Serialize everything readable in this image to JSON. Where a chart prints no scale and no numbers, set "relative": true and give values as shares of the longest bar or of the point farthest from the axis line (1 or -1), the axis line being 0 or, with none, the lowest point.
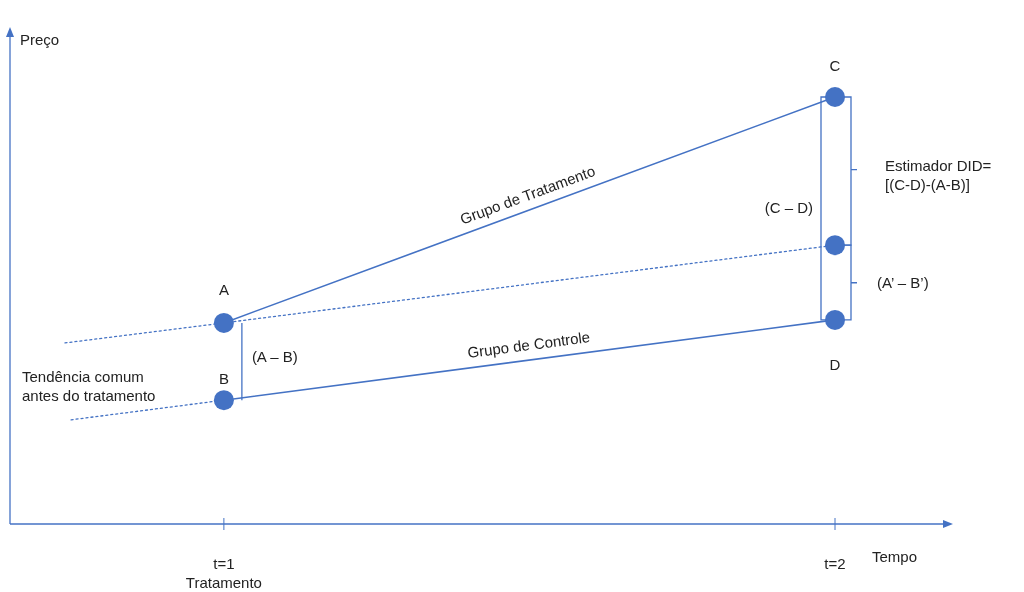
{
  "chart_data": {
    "type": "line",
    "relative": true,
    "ylabel": "Preço",
    "xlabel": "Tempo",
    "xlim": [
      0.65,
      2.18
    ],
    "xticks": [
      {
        "value": 1,
        "label": "t=1\nTratamento"
      },
      {
        "value": 2,
        "label": "t=2"
      }
    ],
    "series": [
      {
        "name": "Grupo de Tratamento",
        "color": "#4472c4",
        "x": [
          1,
          2
        ],
        "values": [
          0.471,
          1
        ],
        "line_style": "solid"
      },
      {
        "name": "Grupo de Controle",
        "color": "#4472c4",
        "x": [
          1,
          2
        ],
        "values": [
          0.29,
          0.478
        ],
        "line_style": "solid"
      },
      {
        "color": "#4472c4",
        "x": [
          0.74,
          1
        ],
        "values": [
          0.424,
          0.471
        ],
        "line_style": "dotted"
      },
      {
        "color": "#4472c4",
        "x": [
          1,
          2
        ],
        "values": [
          0.471,
          0.653
        ],
        "line_style": "dotted"
      },
      {
        "color": "#4472c4",
        "x": [
          0.75,
          1
        ],
        "values": [
          0.244,
          0.29
        ],
        "line_style": "dotted"
      },
      {
        "type": "scatter",
        "marker": "circle",
        "color": "#4472c4",
        "x": [
          1,
          1,
          2,
          2,
          2
        ],
        "values": [
          0.471,
          0.29,
          1,
          0.653,
          0.478
        ]
      }
    ],
    "marker": "none",
    "grid": false,
    "annotations": [
      "A",
      "B",
      "C",
      "D",
      "(A – B)",
      "(C – D)",
      "(A’ – B’)",
      "Estimador DID=\n[(C-D)-(A-B)]",
      "Tendência comum\nantes do tratamento"
    ]
  }
}
